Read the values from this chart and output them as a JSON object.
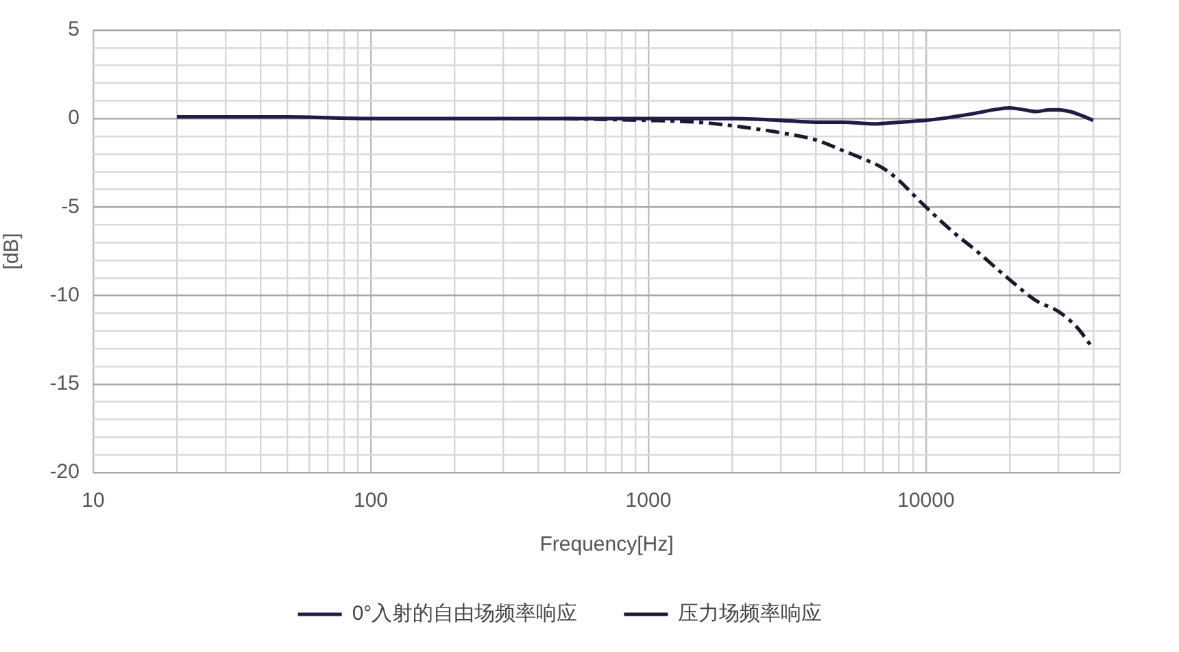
{
  "chart_data": {
    "type": "line",
    "xlabel": "Frequency[Hz]",
    "ylabel": "[dB]",
    "log": "x",
    "xlim": [
      10,
      50000
    ],
    "xticks": [
      10,
      {
        "value": 20,
        "label": null
      },
      {
        "value": 30,
        "label": null
      },
      {
        "value": 40,
        "label": null
      },
      {
        "value": 50,
        "label": null
      },
      {
        "value": 60,
        "label": null
      },
      {
        "value": 70,
        "label": null
      },
      {
        "value": 80,
        "label": null
      },
      {
        "value": 90,
        "label": null
      },
      100,
      {
        "value": 200,
        "label": null
      },
      {
        "value": 300,
        "label": null
      },
      {
        "value": 400,
        "label": null
      },
      {
        "value": 500,
        "label": null
      },
      {
        "value": 600,
        "label": null
      },
      {
        "value": 700,
        "label": null
      },
      {
        "value": 800,
        "label": null
      },
      {
        "value": 900,
        "label": null
      },
      1000,
      {
        "value": 2000,
        "label": null
      },
      {
        "value": 3000,
        "label": null
      },
      {
        "value": 4000,
        "label": null
      },
      {
        "value": 5000,
        "label": null
      },
      {
        "value": 6000,
        "label": null
      },
      {
        "value": 7000,
        "label": null
      },
      {
        "value": 8000,
        "label": null
      },
      {
        "value": 9000,
        "label": null
      },
      10000,
      {
        "value": 20000,
        "label": null
      },
      {
        "value": 30000,
        "label": null
      },
      {
        "value": 40000,
        "label": null
      },
      {
        "value": 50000,
        "label": null
      }
    ],
    "ylim": [
      -20,
      5
    ],
    "yticks": [
      -20,
      {
        "value": -19,
        "label": null
      },
      {
        "value": -18,
        "label": null
      },
      {
        "value": -17,
        "label": null
      },
      {
        "value": -16,
        "label": null
      },
      -15,
      {
        "value": -14,
        "label": null
      },
      {
        "value": -13,
        "label": null
      },
      {
        "value": -12,
        "label": null
      },
      {
        "value": -11,
        "label": null
      },
      -10,
      {
        "value": -9,
        "label": null
      },
      {
        "value": -8,
        "label": null
      },
      {
        "value": -7,
        "label": null
      },
      {
        "value": -6,
        "label": null
      },
      -5,
      {
        "value": -4,
        "label": null
      },
      {
        "value": -3,
        "label": null
      },
      {
        "value": -2,
        "label": null
      },
      {
        "value": -1,
        "label": null
      },
      0,
      {
        "value": 1,
        "label": null
      },
      {
        "value": 2,
        "label": null
      },
      {
        "value": 3,
        "label": null
      },
      {
        "value": 4,
        "label": null
      },
      5
    ],
    "grid": true,
    "legend": "bottom",
    "marker": "none",
    "series": [
      {
        "name": "0°入射的自由场频率响应",
        "color": "#1f1d47",
        "line_style": "solid",
        "x": [
          20,
          50,
          100,
          200,
          500,
          1000,
          2000,
          3000,
          4000,
          5000,
          6500,
          8000,
          10000,
          12500,
          15000,
          17500,
          20000,
          22500,
          25000,
          28000,
          30000,
          33000,
          36000,
          40000
        ],
        "values": [
          0.1,
          0.1,
          0.0,
          0.0,
          0.0,
          0.0,
          0.0,
          -0.1,
          -0.2,
          -0.2,
          -0.3,
          -0.2,
          -0.1,
          0.1,
          0.3,
          0.5,
          0.6,
          0.5,
          0.4,
          0.5,
          0.5,
          0.4,
          0.2,
          -0.1
        ]
      },
      {
        "name": "压力场频率响应",
        "color": "#1a1a2c",
        "line_style": "dashed",
        "x": [
          500,
          1000,
          1500,
          2000,
          3000,
          4000,
          5000,
          6000,
          7000,
          8000,
          9000,
          10000,
          12500,
          15000,
          20000,
          25000,
          30000,
          35000,
          40000
        ],
        "values": [
          0.0,
          -0.1,
          -0.2,
          -0.4,
          -0.8,
          -1.2,
          -1.8,
          -2.3,
          -2.8,
          -3.5,
          -4.3,
          -5.0,
          -6.4,
          -7.4,
          -9.1,
          -10.3,
          -10.9,
          -11.8,
          -13.0
        ]
      }
    ]
  }
}
